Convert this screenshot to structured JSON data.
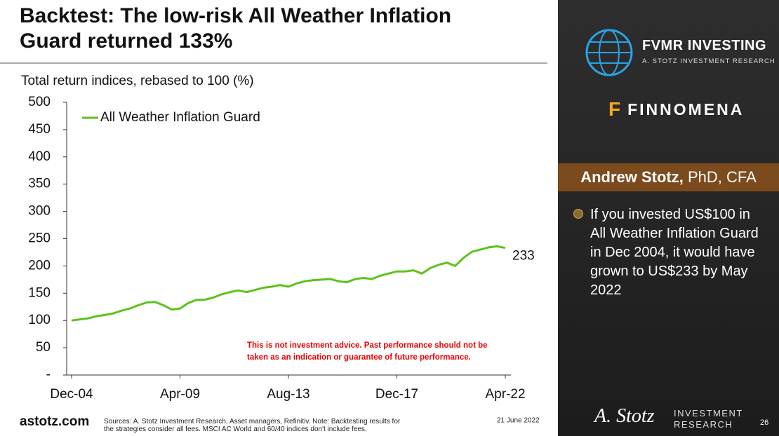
{
  "chart_data": {
    "type": "line",
    "title": "Backtest: The low-risk All Weather Inflation Guard returned 133%",
    "subtitle": "Total return indices, rebased to 100 (%)",
    "categories": [
      "Dec-04",
      null,
      null,
      null,
      null,
      null,
      null,
      null,
      null,
      null,
      null,
      null,
      null,
      "Apr-09",
      null,
      null,
      null,
      null,
      null,
      null,
      null,
      null,
      null,
      null,
      null,
      null,
      "Aug-13",
      null,
      null,
      null,
      null,
      null,
      null,
      null,
      null,
      null,
      null,
      null,
      null,
      "Dec-17",
      null,
      null,
      null,
      null,
      null,
      null,
      null,
      null,
      null,
      null,
      null,
      null,
      "Apr-22"
    ],
    "series": [
      {
        "name": "All Weather Inflation Guard",
        "color": "#5ec21c",
        "values": [
          100,
          102,
          104,
          108,
          110,
          113,
          118,
          122,
          128,
          133,
          134,
          128,
          120,
          122,
          132,
          138,
          138,
          142,
          148,
          152,
          155,
          152,
          156,
          160,
          162,
          165,
          162,
          168,
          172,
          174,
          175,
          176,
          172,
          170,
          176,
          178,
          176,
          182,
          186,
          190,
          190,
          192,
          186,
          196,
          202,
          206,
          200,
          215,
          226,
          230,
          234,
          236,
          233
        ]
      }
    ],
    "ylim": [
      0,
      500
    ],
    "yticks": [
      {
        "value": 0,
        "label": "-"
      },
      50,
      100,
      150,
      200,
      250,
      300,
      350,
      400,
      450,
      500
    ],
    "grid": false,
    "legend": "upper left",
    "annotation": "This is not investment advice. Past performance should not be taken as an indication or guarantee of future performance."
  },
  "slide": {
    "footer_site": "astotz.com",
    "footer_sources": "Sources: A. Stotz Investment Research, Asset managers, Refinitiv. Note: Backtesting results for the strategies consider all fees. MSCI AC World and 60/40 indices don't include fees.",
    "footer_date": "21 June 2022",
    "page_number": "26",
    "brand": "FVMR INVESTING",
    "brand_sub": "A. STOTZ INVESTMENT RESEARCH",
    "partner": "FINNOMENA",
    "author_name": "Andrew Stotz,",
    "author_credentials": "PhD, CFA",
    "bullet": "If you invested US$100 in All Weather Inflation Guard in Dec 2004, it would have grown to US$233 by May 2022",
    "signature": "A. Stotz",
    "logo_text": "INVESTMENT RESEARCH"
  }
}
